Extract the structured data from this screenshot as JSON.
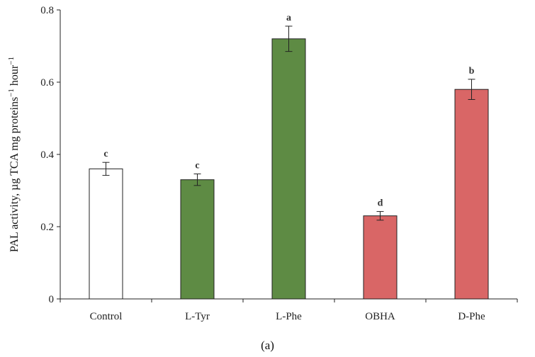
{
  "chart_data": {
    "type": "bar",
    "title": "",
    "xlabel": "",
    "ylabel": "PAL activity, µg TCA mg proteins",
    "ylabel_sup1": "−1",
    "ylabel_mid": " hour",
    "ylabel_sup2": "−1",
    "ylim": [
      0,
      0.8
    ],
    "yticks": [
      0,
      0.2,
      0.4,
      0.6,
      0.8
    ],
    "ytick_labels": [
      "0",
      "0.2",
      "0.4",
      "0.6",
      "0.8"
    ],
    "categories": [
      "Control",
      "L-Tyr",
      "L-Phe",
      "OBHA",
      "D-Phe"
    ],
    "values": [
      0.36,
      0.33,
      0.72,
      0.23,
      0.58
    ],
    "errors": [
      0.018,
      0.016,
      0.035,
      0.012,
      0.028
    ],
    "letters": [
      "c",
      "c",
      "a",
      "d",
      "b"
    ],
    "colors": [
      "#ffffff",
      "#5e8b44",
      "#5e8b44",
      "#d96666",
      "#d96666"
    ],
    "grid": false
  },
  "caption": "(a)"
}
